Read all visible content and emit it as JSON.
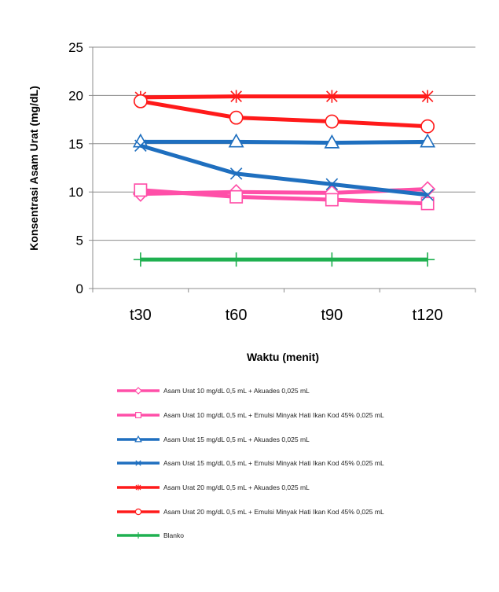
{
  "chart_data": {
    "type": "line",
    "title": "",
    "xlabel": "Waktu (menit)",
    "ylabel": "Konsentrasi Asam Urat (mg/dL)",
    "categories": [
      "t30",
      "t60",
      "t90",
      "t120"
    ],
    "ylim": [
      0,
      25
    ],
    "yticks": [
      "0",
      "5",
      "10",
      "15",
      "20",
      "25"
    ],
    "grid": true,
    "legend_position": "bottom",
    "series": [
      {
        "name": "Asam Urat 10 mg/dL 0,5 mL + Akuades 0,025 mL",
        "values": [
          9.8,
          10.0,
          9.9,
          10.3
        ],
        "color": "#ff4fa8",
        "marker": "diamond"
      },
      {
        "name": "Asam Urat 10 mg/dL 0,5 mL + Emulsi Minyak Hati Ikan Kod 45% 0,025 mL",
        "values": [
          10.2,
          9.5,
          9.2,
          8.8
        ],
        "color": "#ff4fa8",
        "marker": "square"
      },
      {
        "name": "Asam Urat 15 mg/dL 0,5 mL + Akuades 0,025 mL",
        "values": [
          15.2,
          15.2,
          15.1,
          15.2
        ],
        "color": "#1f6fbf",
        "marker": "triangle"
      },
      {
        "name": "Asam Urat 15 mg/dL 0,5 mL + Emulsi Minyak Hati Ikan Kod 45% 0,025 mL",
        "values": [
          14.8,
          11.9,
          10.8,
          9.7
        ],
        "color": "#1f6fbf",
        "marker": "x"
      },
      {
        "name": "Asam Urat 20 mg/dL 0,5 mL + Akuades 0,025 mL",
        "values": [
          19.8,
          19.9,
          19.9,
          19.9
        ],
        "color": "#ff1a1a",
        "marker": "star"
      },
      {
        "name": "Asam Urat 20 mg/dL 0,5 mL + Emulsi Minyak Hati Ikan Kod 45% 0,025 mL",
        "values": [
          19.4,
          17.7,
          17.3,
          16.8
        ],
        "color": "#ff1a1a",
        "marker": "circle"
      },
      {
        "name": "Blanko",
        "values": [
          3.0,
          3.0,
          3.0,
          3.0
        ],
        "color": "#1fb050",
        "marker": "plus"
      }
    ]
  }
}
